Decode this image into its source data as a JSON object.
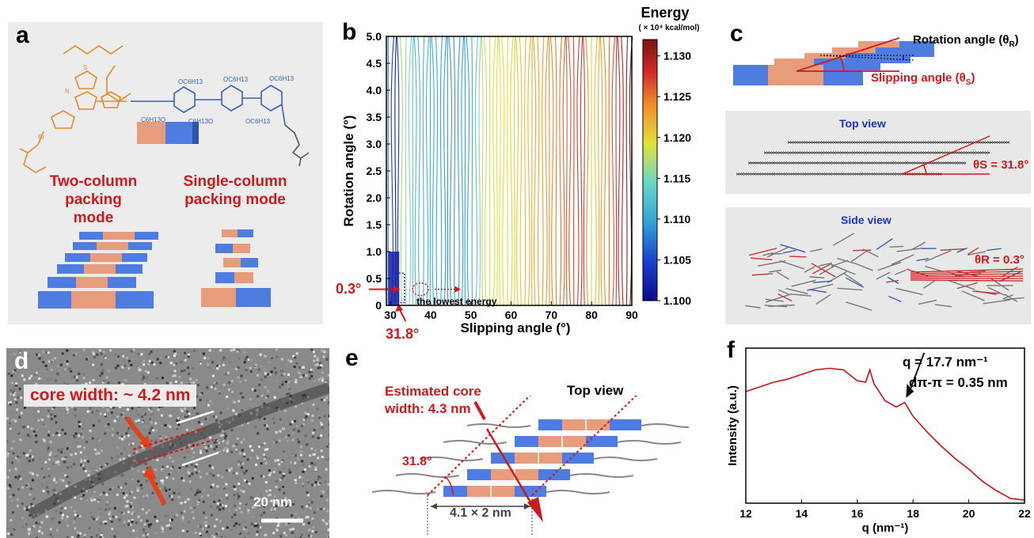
{
  "panels": {
    "a": {
      "label": "a",
      "two_column": [
        "Two-column",
        "packing mode"
      ],
      "single_column": [
        "Single-column",
        "packing mode"
      ],
      "molecule_labels": [
        "S",
        "N",
        "N",
        "Br",
        "OC6H13",
        "OC6H13",
        "OC6H13",
        "OC6H13",
        "C6H13O",
        "C6H13O",
        "C6H13O",
        "OC6H13"
      ]
    },
    "b": {
      "label": "b",
      "colorbar_title": "Energy",
      "colorbar_unit": "( × 10⁴ kcal/mol)",
      "colorbar_ticks": [
        "1.130",
        "1.125",
        "1.120",
        "1.115",
        "1.110",
        "1.105",
        "1.100"
      ],
      "annotation_lowest": "the lowest energy",
      "annotation_rot": "0.3°",
      "annotation_slip": "31.8°"
    },
    "c": {
      "label": "c",
      "rotation_label": "Rotation angle (θ",
      "rotation_sub": "R",
      "slipping_label": "Slipping angle (θ",
      "slipping_sub": "S",
      "top_view": "Top view",
      "top_angle": "θS = 31.8°",
      "side_view": "Side view",
      "side_angle": "θR = 0.3°"
    },
    "d": {
      "label": "d",
      "core_width": "core width: ~ 4.2 nm",
      "scale_bar": "20 nm"
    },
    "e": {
      "label": "e",
      "estimated": [
        "Estimated core",
        "width: 4.3 nm"
      ],
      "top_view": "Top view",
      "angle": "31.8°",
      "dimension": "4.1 × 2 nm"
    },
    "f": {
      "label": "f",
      "peak_q": "q = 17.7 nm⁻¹",
      "d_spacing": "dπ-π = 0.35 nm"
    }
  },
  "chart_data": [
    {
      "type": "heatmap",
      "panel": "b",
      "xlabel": "Slipping angle (°)",
      "ylabel": "Rotation angle (°)",
      "x_ticks": [
        30,
        40,
        50,
        60,
        70,
        80,
        90
      ],
      "y_ticks": [
        0,
        0.5,
        1.0,
        1.5,
        2.0,
        2.5,
        3.0,
        3.5,
        4.0,
        4.5,
        5.0
      ],
      "xlim": [
        29,
        90
      ],
      "ylim": [
        0,
        5.0
      ],
      "zlim": [
        1.1,
        1.132
      ],
      "minimum": {
        "x": 31.8,
        "y": 0.3
      },
      "energy_profile_vs_slip": [
        {
          "x": 29,
          "z": 1.108
        },
        {
          "x": 31.8,
          "z": 1.1
        },
        {
          "x": 33,
          "z": 1.118
        },
        {
          "x": 36,
          "z": 1.112
        },
        {
          "x": 45,
          "z": 1.109
        },
        {
          "x": 50,
          "z": 1.11
        },
        {
          "x": 53,
          "z": 1.118
        },
        {
          "x": 60,
          "z": 1.12
        },
        {
          "x": 70,
          "z": 1.124
        },
        {
          "x": 78,
          "z": 1.128
        },
        {
          "x": 80,
          "z": 1.12
        },
        {
          "x": 85,
          "z": 1.126
        },
        {
          "x": 90,
          "z": 1.132
        }
      ]
    },
    {
      "type": "line",
      "panel": "f",
      "xlabel": "q (nm⁻¹)",
      "ylabel": "Intensity (a.u.)",
      "x_ticks": [
        12,
        14,
        16,
        18,
        20,
        22
      ],
      "xlim": [
        12,
        22
      ],
      "ylim": [
        0,
        1
      ],
      "series": [
        {
          "x": [
            12.0,
            12.5,
            13.0,
            13.5,
            14.0,
            14.5,
            15.0,
            15.5,
            16.0,
            16.3,
            16.45,
            16.6,
            17.0,
            17.4,
            17.7,
            18.0,
            18.5,
            19.0,
            19.5,
            20.0,
            20.5,
            21.0,
            21.5,
            22.0
          ],
          "y": [
            0.72,
            0.75,
            0.78,
            0.8,
            0.83,
            0.86,
            0.87,
            0.86,
            0.79,
            0.78,
            0.86,
            0.77,
            0.66,
            0.62,
            0.65,
            0.56,
            0.46,
            0.37,
            0.29,
            0.22,
            0.14,
            0.08,
            0.03,
            0.02
          ]
        }
      ]
    }
  ]
}
